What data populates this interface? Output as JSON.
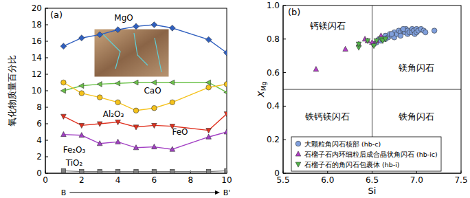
{
  "chart_data": [
    {
      "type": "line",
      "title": "(a)",
      "y_label": "氧化物质量百分比",
      "x": [
        1,
        2,
        3,
        4,
        5,
        6,
        7,
        9,
        10
      ],
      "xlim": [
        0,
        10
      ],
      "xticks": [
        0,
        2,
        4,
        6,
        8,
        10
      ],
      "ylim": [
        0,
        20
      ],
      "yticks": [
        0,
        2,
        4,
        6,
        8,
        10,
        12,
        14,
        16,
        18,
        20
      ],
      "annotations": [
        {
          "text": "B",
          "x": 1
        },
        {
          "text": "B'",
          "x": 10
        }
      ],
      "series": [
        {
          "name": "MgO",
          "color": "#2f5fbf",
          "marker": "diamond",
          "values": [
            15.4,
            16.4,
            16.8,
            17.4,
            17.8,
            18.0,
            17.6,
            16.2,
            14.6
          ]
        },
        {
          "name": "CaO",
          "color": "#6cc24a",
          "marker": "triangle-left",
          "values": [
            10.0,
            10.6,
            10.8,
            10.9,
            11.0,
            11.0,
            11.0,
            11.0,
            9.8
          ]
        },
        {
          "name": "Al₂O₃",
          "color": "#f5c21b",
          "marker": "circle",
          "values": [
            11.0,
            9.7,
            9.2,
            8.6,
            7.6,
            7.9,
            8.6,
            10.4,
            10.8
          ]
        },
        {
          "name": "FeO",
          "color": "#e0301e",
          "marker": "triangle-down",
          "values": [
            6.9,
            5.8,
            6.0,
            6.2,
            5.6,
            5.8,
            5.7,
            5.2,
            7.2
          ]
        },
        {
          "name": "Fe₂O₃",
          "color": "#a23fc4",
          "marker": "triangle-up",
          "values": [
            4.7,
            4.6,
            3.6,
            3.8,
            3.1,
            3.2,
            2.9,
            4.4,
            5.0
          ]
        },
        {
          "name": "TiO₂",
          "color": "#808080",
          "marker": "square",
          "values": [
            0.3,
            0.2,
            0.2,
            0.2,
            0.2,
            0.2,
            0.2,
            0.2,
            0.3
          ]
        }
      ]
    },
    {
      "type": "scatter",
      "title": "(b)",
      "x_label": "Si",
      "y_label": "XMg",
      "xlim": [
        5.5,
        7.5
      ],
      "xticks": [
        5.5,
        {
          "value": 6,
          "label": "6.0"
        },
        6.5,
        {
          "value": 7,
          "label": "7.0"
        },
        7.5
      ],
      "ylim": [
        0,
        1
      ],
      "yticks": [
        0,
        0.2,
        0.4,
        0.6,
        0.8,
        {
          "value": 1,
          "label": "1.0"
        }
      ],
      "dividers": {
        "x": 6.5,
        "y": 0.5
      },
      "annotations": [
        {
          "text": "钙镁闪石",
          "x": 6.0,
          "y": 0.88
        },
        {
          "text": "镁角闪石",
          "x": 7.0,
          "y": 0.63
        },
        {
          "text": "铁钙镁闪石",
          "x": 6.0,
          "y": 0.34
        },
        {
          "text": "铁角闪石",
          "x": 7.0,
          "y": 0.34
        }
      ],
      "legend": "lower right",
      "series": [
        {
          "name": "大颗粒角闪石核部 (hb-c)",
          "color": "#7f9fdc",
          "marker": "circle",
          "x": [
            6.52,
            6.55,
            6.58,
            6.6,
            6.62,
            6.65,
            6.68,
            6.7,
            6.72,
            6.75,
            6.75,
            6.78,
            6.8,
            6.82,
            6.82,
            6.85,
            6.87,
            6.88,
            6.9,
            6.9,
            6.92,
            6.95,
            6.95,
            6.97,
            6.98,
            7.0,
            7.0,
            7.02,
            7.05,
            7.08,
            7.1,
            7.2,
            6.65,
            6.72,
            6.85
          ],
          "values": [
            0.77,
            0.78,
            0.8,
            0.79,
            0.8,
            0.82,
            0.81,
            0.83,
            0.82,
            0.84,
            0.81,
            0.83,
            0.85,
            0.84,
            0.82,
            0.85,
            0.84,
            0.86,
            0.85,
            0.83,
            0.84,
            0.86,
            0.84,
            0.85,
            0.83,
            0.86,
            0.84,
            0.85,
            0.86,
            0.85,
            0.84,
            0.85,
            0.8,
            0.83,
            0.86
          ]
        },
        {
          "name": "石榴子石内环细粒后成合晶状角闪石 (hb-ic)",
          "color": "#b03ec4",
          "marker": "triangle-up",
          "x": [
            5.87,
            6.2,
            6.35,
            6.42,
            6.45,
            6.5,
            6.55,
            6.6
          ],
          "values": [
            0.62,
            0.74,
            0.77,
            0.8,
            0.79,
            0.78,
            0.79,
            0.82
          ]
        },
        {
          "name": "石榴子石的角闪石包裹体 (hb-i)",
          "color": "#52b34a",
          "marker": "triangle-down",
          "x": [
            6.35,
            6.35,
            6.45,
            6.52,
            6.55,
            6.6,
            6.62,
            6.65
          ],
          "values": [
            0.75,
            0.77,
            0.79,
            0.76,
            0.79,
            0.8,
            0.79,
            0.8
          ]
        }
      ]
    }
  ]
}
